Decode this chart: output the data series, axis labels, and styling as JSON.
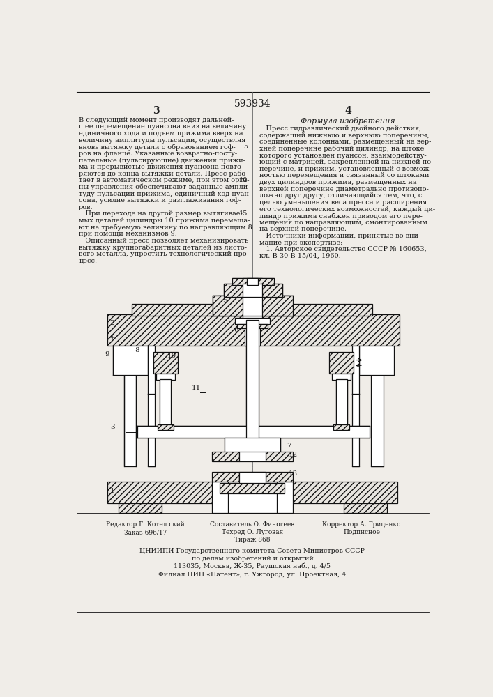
{
  "patent_number": "593934",
  "page_left": "3",
  "page_right": "4",
  "right_column_title": "Формула изобретения",
  "left_text": [
    "В следующий момент производят дальней-",
    "шее перемещение пуансона вниз на величину",
    "единичного хода и подъем прижима вверх на",
    "величину амплитуды пульсации, осуществляя",
    "вновь вытяжку детали с образованием гоф-",
    "ров на фланце. Указанные возвратно-посту-",
    "пательные (пульсирующие) движения прижи-",
    "ма и прерывистые движения пуансона повто-",
    "ряются до конца вытяжки детали. Пресс рабо-",
    "тает в автоматическом режиме, при этом орга-",
    "ны управления обеспечивают заданные ампли-",
    "туду пульсации прижима, единичный ход пуан-",
    "сона, усилие вытяжки и разглаживания гоф-",
    "ров.",
    "   При переходе на другой размер вытягивае-",
    "мых деталей цилиндры 10 прижима перемеща-",
    "ют на требуемую величину по направляющим 8",
    "при помощи механизмов 9.",
    "   Описанный пресс позволяет механизировать",
    "вытяжку крупногабаритных деталей из листо-",
    "вого металла, упростить технологический про-",
    "цесс."
  ],
  "right_text": [
    "   Пресс гидравлический двойного действия,",
    "содержащий нижнюю и верхнюю поперечины,",
    "соединенные колоннами, размещенный на вер-",
    "хней поперечине рабочий цилиндр, на штоке",
    "которого установлен пуансон, взаимодейству-",
    "ющий с матрицей, закрепленной на нижней по-",
    "перечине, и прижим, установленный с возмож-",
    "ностью перемещения и связанный со штоками",
    "двух цилиндров прижима, размещенных на",
    "верхней поперечине диаметрально противопо-",
    "ложно друг другу, отличающийся тем, что, с",
    "целью уменьшения веса пресса и расширения",
    "его технологических возможностей, каждый ци-",
    "линдр прижима снабжен приводом его пере-",
    "мещения по направляющим, смонтированным",
    "на верхней поперечине.",
    "   Источники информации, принятые во вни-",
    "мание при экспертизе:",
    "   1. Авторское свидетельство СССР № 160653,",
    "кл. В 30 В 15/04, 1960."
  ],
  "footer_editor": "Редактор Г. Котел ский",
  "footer_order": "Заказ 696/17",
  "footer_compiler": "Составитель О. Финогеев",
  "footer_tech": "Техред О. Луговая",
  "footer_circulation": "Тираж 868",
  "footer_corrector": "Корректор А. Гриценко",
  "footer_sign": "Подписное",
  "footer_center1": "ЦНИИПИ Государственного комитета Совета Министров СССР",
  "footer_center2": "по делам изобретений и открытий",
  "footer_center3": "113035, Москва, Ж-35, Раушская наб., д. 4/5",
  "footer_center4": "Филиал ПИП «Патент», г. Ужгород, ул. Проектная, 4",
  "bg_color": "#f0ede8",
  "text_color": "#1a1a1a",
  "line_color": "#444444",
  "hatch_color": "#333333",
  "draw_line_color": "#111111",
  "draw_bg": "#f0ede8"
}
